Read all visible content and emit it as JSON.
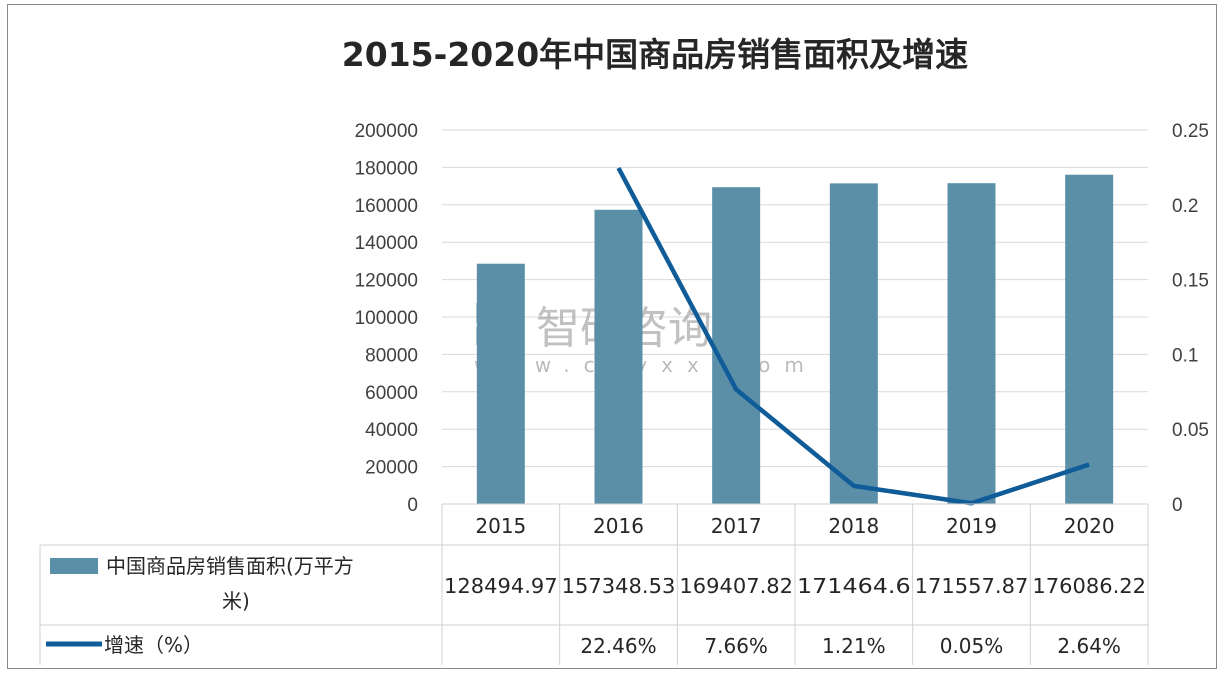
{
  "chart_data": {
    "type": "bar+line",
    "title": "2015-2020年中国商品房销售面积及增速",
    "categories": [
      "2015",
      "2016",
      "2017",
      "2018",
      "2019",
      "2020"
    ],
    "series": [
      {
        "name": "中国商品房销售面积(万平方米)",
        "type": "bar",
        "axis": "left",
        "color": "#5b8fa8",
        "values": [
          128494.97,
          157348.53,
          169407.82,
          171464.6,
          171557.87,
          176086.22
        ],
        "labels": [
          "128494.97",
          "157348.53",
          "169407.82",
          "171464.6",
          "171557.87",
          "176086.22"
        ]
      },
      {
        "name": "增速（%）",
        "type": "line",
        "axis": "right",
        "color": "#0f5c99",
        "values": [
          null,
          0.2246,
          0.0766,
          0.0121,
          0.0005,
          0.0264
        ],
        "labels": [
          "",
          "22.46%",
          "7.66%",
          "1.21%",
          "0.05%",
          "2.64%"
        ]
      }
    ],
    "y_left": {
      "lim": [
        0,
        200000
      ],
      "ticks": [
        "0",
        "20000",
        "40000",
        "60000",
        "80000",
        "100000",
        "120000",
        "140000",
        "160000",
        "180000",
        "200000"
      ]
    },
    "y_right": {
      "lim": [
        0,
        0.25
      ],
      "ticks": [
        "0",
        "0.05",
        "0.1",
        "0.15",
        "0.2",
        "0.25"
      ]
    },
    "grid": true,
    "legend": "data-table"
  },
  "watermark": {
    "name": "智研咨询",
    "url": "www.chyxx.com"
  }
}
